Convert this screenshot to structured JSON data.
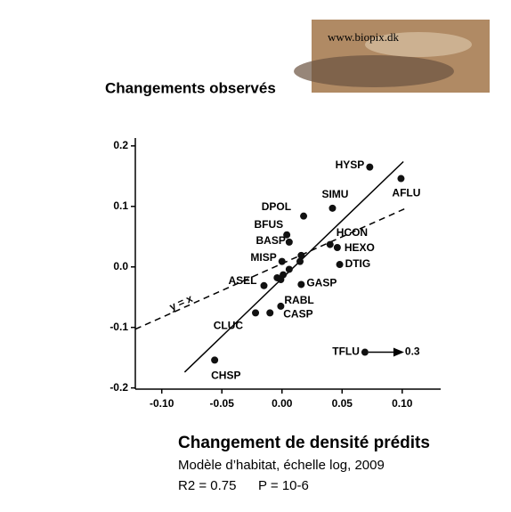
{
  "chart_data": {
    "type": "scatter",
    "title": "Changements observés",
    "logo": "www.biopix.dk",
    "xlabel": "Changement de densité prédits",
    "subtitle": "Modèle d’habitat, échelle log, 2009",
    "stats": [
      "R2 = 0.75",
      "P = 10-6"
    ],
    "line_label": "y = x",
    "offscale_label": "0.3",
    "x": [
      0.073,
      0.099,
      0.042,
      0.018,
      0.004,
      0.006,
      0.04,
      0.046,
      0.048,
      0.0,
      0.016,
      0.015,
      0.006,
      0.001,
      -0.004,
      -0.001,
      -0.015,
      0.016,
      -0.001,
      -0.01,
      -0.022,
      0.069,
      -0.056
    ],
    "y": [
      0.165,
      0.146,
      0.097,
      0.084,
      0.053,
      0.041,
      0.037,
      0.032,
      0.004,
      0.009,
      0.019,
      0.009,
      -0.004,
      -0.013,
      -0.018,
      -0.021,
      -0.031,
      -0.029,
      -0.065,
      -0.076,
      -0.076,
      -0.141,
      -0.154
    ],
    "labels": [
      "HYSP",
      "AFLU",
      "SIMU",
      "DPOL",
      "BFUS",
      "BASP",
      "HCON",
      "HEXO",
      "DTIG",
      "MISP",
      null,
      null,
      null,
      null,
      null,
      null,
      "ASEL",
      "GASP",
      "RABL",
      "CASP",
      "CLUC",
      "TFLU",
      "CHSP"
    ],
    "regression": {
      "x": [
        -0.081,
        0.101
      ],
      "y": [
        -0.174,
        0.174
      ]
    },
    "identity": {
      "x": [
        -0.122,
        0.102
      ],
      "y": [
        -0.103,
        0.096
      ]
    },
    "xlim": [
      -0.122,
      0.132
    ],
    "ylim": [
      -0.202,
      0.213
    ],
    "xticks": [
      {
        "value": -0.1,
        "label": "-0.10"
      },
      {
        "value": -0.05,
        "label": "-0.05"
      },
      {
        "value": 0,
        "label": "0.00"
      },
      {
        "value": 0.05,
        "label": "0.05"
      },
      {
        "value": 0.1,
        "label": "0.10"
      }
    ],
    "yticks": [
      -0.2,
      -0.1,
      {
        "value": 0,
        "label": "0.0"
      },
      0.1,
      0.2
    ],
    "color": "#111111"
  }
}
